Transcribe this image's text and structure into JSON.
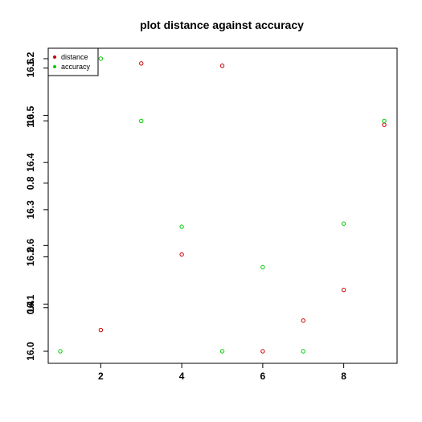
{
  "chart_data": {
    "type": "scatter",
    "title": "plot distance against accuracy",
    "xlabel": "",
    "ylabel": "",
    "xlim": [
      1,
      9
    ],
    "ylim": [
      16.0,
      16.62
    ],
    "grid": false,
    "legend_position": "top-left",
    "x_ticks": [
      "2",
      "4",
      "6",
      "8"
    ],
    "x_tick_values": [
      2,
      4,
      6,
      8
    ],
    "y_ticks_primary": [
      "16.0",
      "16.1",
      "16.2",
      "16.3",
      "16.4",
      "16.5",
      "16.6"
    ],
    "y_tick_values_primary": [
      16.0,
      16.1,
      16.2,
      16.3,
      16.4,
      16.5,
      16.6
    ],
    "y_ticks_secondary": [
      "0.4",
      "0.6",
      "0.8",
      "1.0",
      "1.2"
    ],
    "y_tick_values_secondary": [
      0.4,
      0.6,
      0.8,
      1.0,
      1.2
    ],
    "secondary_ylim": [
      0.26,
      1.2
    ],
    "series": [
      {
        "name": "distance",
        "color": "#cc0000",
        "axis": "primary",
        "x": [
          2,
          3,
          4,
          5,
          6,
          7,
          8,
          9
        ],
        "y": [
          16.045,
          16.61,
          16.205,
          16.605,
          16.0,
          16.065,
          16.13,
          16.48
        ]
      },
      {
        "name": "accuracy",
        "color": "#00cc00",
        "axis": "secondary",
        "x": [
          1,
          2,
          3,
          4,
          5,
          6,
          7,
          8,
          9
        ],
        "y": [
          0.26,
          1.2,
          1.0,
          0.66,
          0.26,
          0.53,
          0.26,
          0.67,
          1.0
        ]
      }
    ]
  }
}
